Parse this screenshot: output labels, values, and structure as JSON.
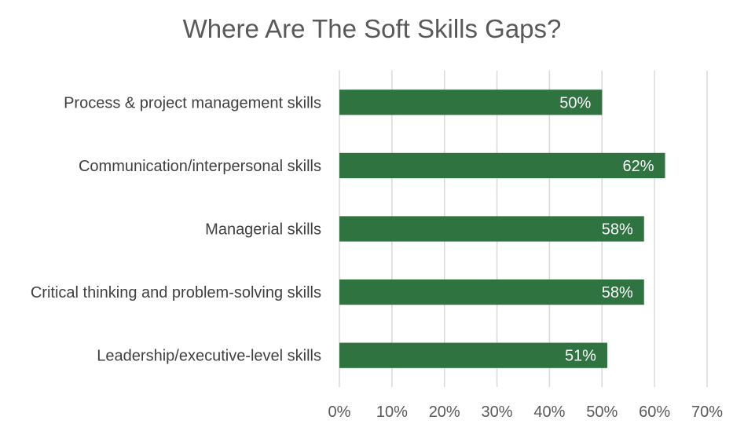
{
  "chart_data": {
    "type": "bar",
    "orientation": "horizontal",
    "title": "Where Are The Soft Skills Gaps?",
    "categories": [
      "Process & project management skills",
      "Communication/interpersonal skills",
      "Managerial skills",
      "Critical thinking and problem-solving skills",
      "Leadership/executive-level skills"
    ],
    "values": [
      50,
      62,
      58,
      58,
      51
    ],
    "data_labels": [
      "50%",
      "62%",
      "58%",
      "58%",
      "51%"
    ],
    "xlim": [
      0,
      70
    ],
    "x_ticks": [
      0,
      10,
      20,
      30,
      40,
      50,
      60,
      70
    ],
    "x_tick_labels": [
      "0%",
      "10%",
      "20%",
      "30%",
      "40%",
      "50%",
      "60%",
      "70%"
    ],
    "xlabel": "",
    "ylabel": "",
    "grid": "vertical",
    "legend": "none",
    "bar_color": "#2e7340"
  }
}
